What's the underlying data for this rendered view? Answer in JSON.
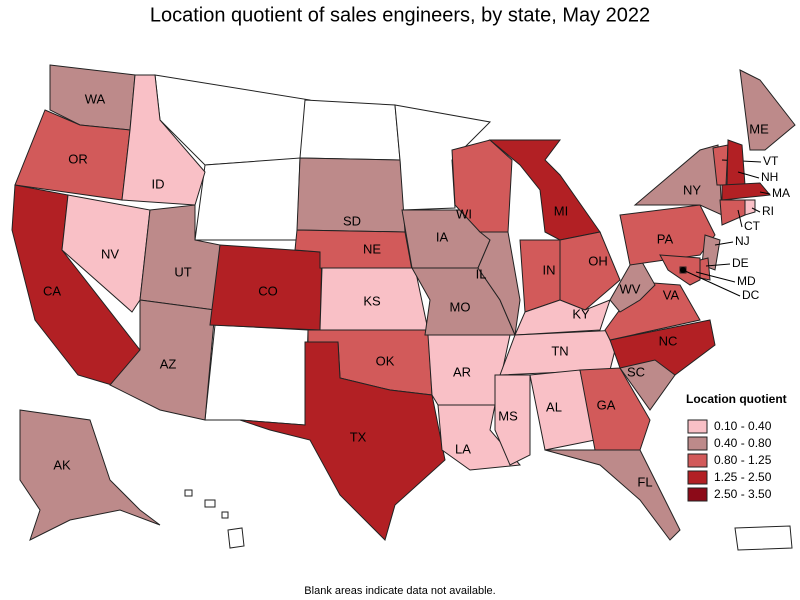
{
  "title": "Location quotient of sales engineers, by state, May 2022",
  "footnote": "Blank areas indicate data not available.",
  "legend": {
    "title": "Location quotient",
    "classes": [
      {
        "label": "0.10 - 0.40",
        "color": "#f9c0c6"
      },
      {
        "label": "0.40 - 0.80",
        "color": "#bd8a8a"
      },
      {
        "label": "0.80 - 1.25",
        "color": "#d25a5a"
      },
      {
        "label": "1.25 - 2.50",
        "color": "#b22024"
      },
      {
        "label": "2.50 - 3.50",
        "color": "#8c0a18"
      }
    ]
  },
  "states": [
    {
      "label": "WA",
      "class": 1
    },
    {
      "label": "OR",
      "class": 2
    },
    {
      "label": "CA",
      "class": 3
    },
    {
      "label": "NV",
      "class": 0
    },
    {
      "label": "ID",
      "class": 0
    },
    {
      "label": "UT",
      "class": 1
    },
    {
      "label": "AZ",
      "class": 1
    },
    {
      "label": "CO",
      "class": 3
    },
    {
      "label": "SD",
      "class": 1
    },
    {
      "label": "NE",
      "class": 2
    },
    {
      "label": "KS",
      "class": 0
    },
    {
      "label": "OK",
      "class": 2
    },
    {
      "label": "TX",
      "class": 3
    },
    {
      "label": "IA",
      "class": 1
    },
    {
      "label": "MO",
      "class": 1
    },
    {
      "label": "AR",
      "class": 0
    },
    {
      "label": "LA",
      "class": 0
    },
    {
      "label": "WI",
      "class": 2
    },
    {
      "label": "IL",
      "class": 1
    },
    {
      "label": "MI",
      "class": 3
    },
    {
      "label": "IN",
      "class": 2
    },
    {
      "label": "OH",
      "class": 2
    },
    {
      "label": "KY",
      "class": 0
    },
    {
      "label": "TN",
      "class": 0
    },
    {
      "label": "MS",
      "class": 0
    },
    {
      "label": "AL",
      "class": 0
    },
    {
      "label": "GA",
      "class": 2
    },
    {
      "label": "FL",
      "class": 1
    },
    {
      "label": "SC",
      "class": 1
    },
    {
      "label": "NC",
      "class": 3
    },
    {
      "label": "VA",
      "class": 2
    },
    {
      "label": "WV",
      "class": 1
    },
    {
      "label": "PA",
      "class": 2
    },
    {
      "label": "NY",
      "class": 1
    },
    {
      "label": "ME",
      "class": 1
    },
    {
      "label": "VT",
      "class": 2
    },
    {
      "label": "NH",
      "class": 3
    },
    {
      "label": "MA",
      "class": 3
    },
    {
      "label": "RI",
      "class": 0
    },
    {
      "label": "CT",
      "class": 2
    },
    {
      "label": "NJ",
      "class": 1
    },
    {
      "label": "DE",
      "class": 2
    },
    {
      "label": "MD",
      "class": 2
    },
    {
      "label": "DC",
      "class": 4
    },
    {
      "label": "AK",
      "class": 1
    }
  ]
}
